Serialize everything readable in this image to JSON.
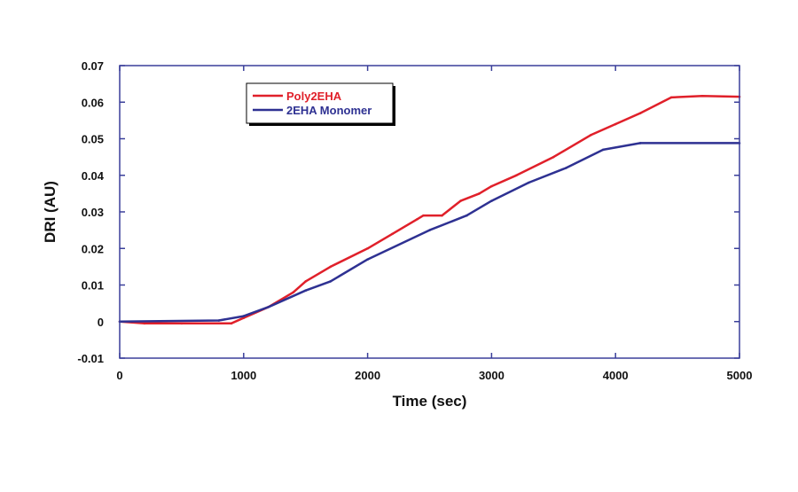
{
  "chart_data": {
    "type": "line",
    "title": "",
    "xlabel": "Time (sec)",
    "ylabel": "DRI (AU)",
    "xlim": [
      0,
      5000
    ],
    "ylim": [
      -0.01,
      0.07
    ],
    "xticks": [
      0,
      1000,
      2000,
      3000,
      4000,
      5000
    ],
    "xtick_labels": [
      "0",
      "1000",
      "2000",
      "3000",
      "4000",
      "5000"
    ],
    "yticks": [
      -0.01,
      0,
      0.01,
      0.02,
      0.03,
      0.04,
      0.05,
      0.06,
      0.07
    ],
    "ytick_labels": [
      "-0.01",
      "0",
      "0.01",
      "0.02",
      "0.03",
      "0.04",
      "0.05",
      "0.06",
      "0.07"
    ],
    "grid": false,
    "legend_position": "top-left",
    "axis_color": "#3a3f9a",
    "series": [
      {
        "name": "Poly2EHA",
        "color": "#e0202a",
        "x": [
          0,
          200,
          500,
          900,
          1000,
          1200,
          1400,
          1500,
          1700,
          2000,
          2200,
          2400,
          2450,
          2600,
          2750,
          2900,
          3000,
          3200,
          3500,
          3800,
          4000,
          4200,
          4450,
          4700,
          5000
        ],
        "y": [
          0,
          -0.0005,
          -0.0005,
          -0.0005,
          0.001,
          0.004,
          0.008,
          0.011,
          0.015,
          0.02,
          0.024,
          0.028,
          0.029,
          0.029,
          0.033,
          0.035,
          0.037,
          0.04,
          0.045,
          0.051,
          0.054,
          0.057,
          0.0613,
          0.0617,
          0.0615
        ]
      },
      {
        "name": "2EHA Monomer",
        "color": "#2e3192",
        "x": [
          0,
          800,
          1000,
          1200,
          1500,
          1700,
          2000,
          2500,
          2800,
          3000,
          3300,
          3600,
          3900,
          4200,
          5000
        ],
        "y": [
          0,
          0.0003,
          0.0015,
          0.004,
          0.0085,
          0.011,
          0.017,
          0.025,
          0.029,
          0.033,
          0.038,
          0.042,
          0.047,
          0.0488,
          0.0488
        ]
      }
    ]
  }
}
